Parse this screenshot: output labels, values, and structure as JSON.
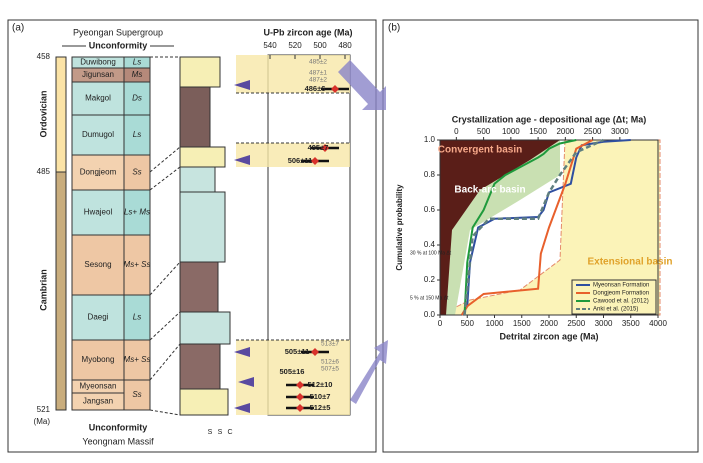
{
  "panel_a": {
    "label": "(a)",
    "supergroup": "Pyeongan Supergroup",
    "top_unconformity": "Unconformity",
    "bottom_unconformity": "Unconformity",
    "basement": "Yeongnam Massif",
    "age_labels": [
      "458",
      "485",
      "521",
      "(Ma)"
    ],
    "periods": [
      "Ordovician",
      "Cambrian"
    ],
    "formations": [
      "Duwibong",
      "Jigunsan",
      "Makgol",
      "Dumugol",
      "Dongjeom",
      "Hwajeol",
      "Sesong",
      "Daegi",
      "Myobong",
      "Myeonsan",
      "Jangsan"
    ],
    "lithology": [
      "Ls",
      "Ms",
      "Ds",
      "Ls",
      "Ss",
      "Ls+ Ms",
      "Ms+ Ss",
      "Ls",
      "Ms+ Ss",
      "Ss"
    ],
    "column_labels": [
      "S",
      "S",
      "C"
    ],
    "zircon_axis_title": "U-Pb zircon age (Ma)",
    "zircon_ticks": [
      "540",
      "520",
      "500",
      "480"
    ],
    "zircon_ages": [
      "485±2",
      "487±1",
      "487±2",
      "486±6",
      "495±7",
      "506±11",
      "513±7",
      "505±11",
      "505±16",
      "512±6",
      "507±5",
      "512±10",
      "510±7",
      "512±5"
    ]
  },
  "chart_data": {
    "type": "line",
    "label": "(b)",
    "x_label": "Detrital zircon age (Ma)",
    "x2_label": "Crystallization age - depositional age (Δt; Ma)",
    "y_label": "Cumulative probability",
    "xlim": [
      0,
      4000
    ],
    "xticks": [
      0,
      500,
      1000,
      1500,
      2000,
      2500,
      3000,
      3500,
      4000
    ],
    "x2lim": [
      -300,
      3700
    ],
    "x2ticks": [
      0,
      500,
      1000,
      1500,
      2000,
      2500,
      3000
    ],
    "ylim": [
      0,
      1
    ],
    "yticks": [
      {
        "value": 0,
        "label": "0.0"
      },
      {
        "value": 0.2,
        "label": "0.2"
      },
      {
        "value": 0.4,
        "label": "0.4"
      },
      {
        "value": 0.6,
        "label": "0.6"
      },
      {
        "value": 0.8,
        "label": "0.8"
      },
      {
        "value": 1,
        "label": "1.0"
      }
    ],
    "regions": [
      "Convergent basin",
      "Back-arc basin",
      "Extensional basin"
    ],
    "annotations": [
      "30 % at 100 Ma Δt",
      "5 % at 150 Ma Δt"
    ],
    "series": [
      {
        "name": "Myeonsan Formation",
        "color": "#2f4fa0",
        "x": [
          400,
          500,
          550,
          700,
          1000,
          1800,
          1900,
          2000,
          2400,
          2500,
          2600,
          3000,
          3500
        ],
        "values": [
          0,
          0.05,
          0.3,
          0.5,
          0.55,
          0.56,
          0.6,
          0.7,
          0.75,
          0.9,
          0.97,
          0.99,
          1
        ]
      },
      {
        "name": "Dongjeom Formation",
        "color": "#e8602c",
        "x": [
          400,
          500,
          800,
          1800,
          1850,
          2000,
          2300,
          2500,
          2800
        ],
        "values": [
          0,
          0.05,
          0.12,
          0.15,
          0.35,
          0.5,
          0.75,
          0.95,
          1
        ]
      },
      {
        "name": "Cawood et al. (2012)",
        "color": "#1f9a3c",
        "x": [
          450,
          500,
          600,
          800,
          1000,
          1200,
          1500,
          1800,
          1900,
          2000,
          2200,
          2500
        ],
        "values": [
          0,
          0.3,
          0.5,
          0.6,
          0.75,
          0.8,
          0.85,
          0.9,
          0.92,
          0.95,
          0.98,
          1
        ]
      },
      {
        "name": "Anki et al. (2015)",
        "color": "#5f7f7f",
        "dashed": true,
        "x": [
          450,
          600,
          900,
          1800,
          2000,
          2200,
          2500,
          3000
        ],
        "values": [
          0,
          0.45,
          0.55,
          0.55,
          0.7,
          0.8,
          0.93,
          1
        ]
      }
    ]
  }
}
